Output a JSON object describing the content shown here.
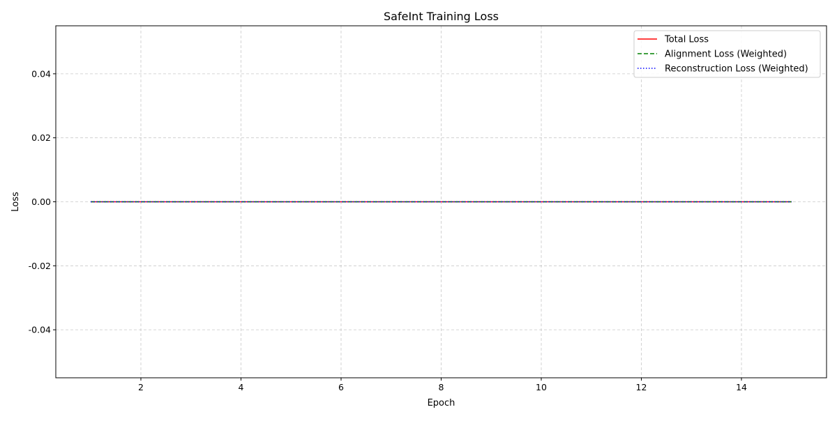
{
  "chart_data": {
    "type": "line",
    "title": "SafeInt Training Loss",
    "xlabel": "Epoch",
    "ylabel": "Loss",
    "xlim": [
      0.3,
      15.7
    ],
    "ylim": [
      -0.055,
      0.055
    ],
    "xticks": [
      2,
      4,
      6,
      8,
      10,
      12,
      14
    ],
    "xtick_labels": [
      "2",
      "4",
      "6",
      "8",
      "10",
      "12",
      "14"
    ],
    "yticks": [
      -0.04,
      -0.02,
      0.0,
      0.02,
      0.04
    ],
    "ytick_labels": [
      "-0.04",
      "-0.02",
      "0.00",
      "0.02",
      "0.04"
    ],
    "grid": true,
    "legend_position": "top-right",
    "x": [
      1,
      2,
      3,
      4,
      5,
      6,
      7,
      8,
      9,
      10,
      11,
      12,
      13,
      14,
      15
    ],
    "series": [
      {
        "name": "Total Loss",
        "color": "#ff0000",
        "line_style": "solid",
        "values": [
          0,
          0,
          0,
          0,
          0,
          0,
          0,
          0,
          0,
          0,
          0,
          0,
          0,
          0,
          0
        ]
      },
      {
        "name": "Alignment Loss (Weighted)",
        "color": "#008000",
        "line_style": "dashed",
        "values": [
          0,
          0,
          0,
          0,
          0,
          0,
          0,
          0,
          0,
          0,
          0,
          0,
          0,
          0,
          0
        ]
      },
      {
        "name": "Reconstruction Loss (Weighted)",
        "color": "#0000ff",
        "line_style": "dotted",
        "values": [
          0,
          0,
          0,
          0,
          0,
          0,
          0,
          0,
          0,
          0,
          0,
          0,
          0,
          0,
          0
        ]
      }
    ]
  }
}
